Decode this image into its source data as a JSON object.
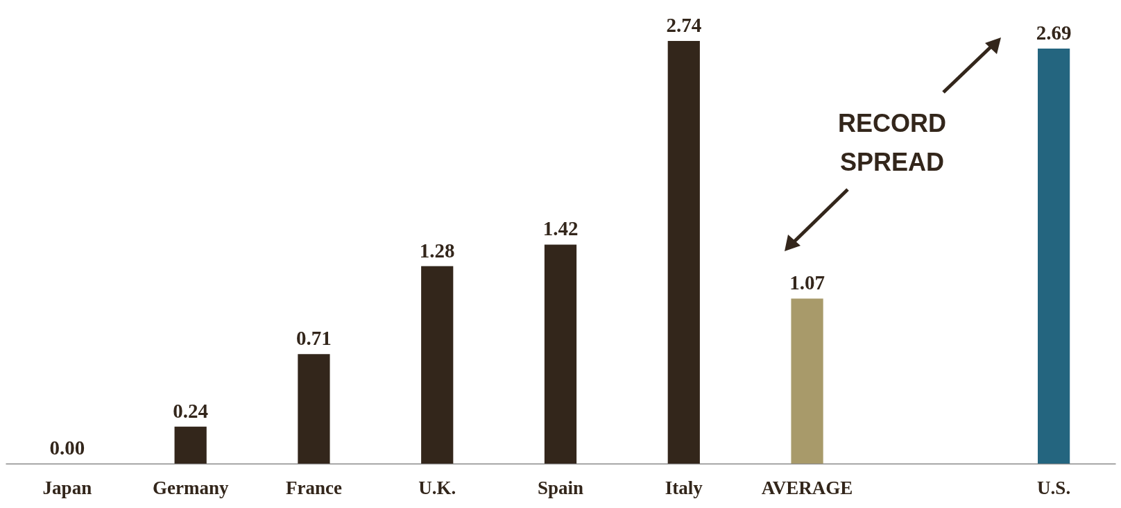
{
  "chart_data": {
    "type": "bar",
    "categories": [
      "Japan",
      "Germany",
      "France",
      "U.K.",
      "Spain",
      "Italy",
      "AVERAGE",
      null,
      "U.S."
    ],
    "values": [
      0,
      0.24,
      0.71,
      1.28,
      1.42,
      2.74,
      1.07,
      null,
      2.69
    ],
    "value_labels": [
      "0.00",
      "0.24",
      "0.71",
      "1.28",
      "1.42",
      "2.74",
      "1.07",
      null,
      "2.69"
    ],
    "colors": [
      "#33261b",
      "#33261b",
      "#33261b",
      "#33261b",
      "#33261b",
      "#33261b",
      "#a89a6a",
      null,
      "#24657f"
    ],
    "annotations": [
      "RECORD SPREAD"
    ]
  }
}
